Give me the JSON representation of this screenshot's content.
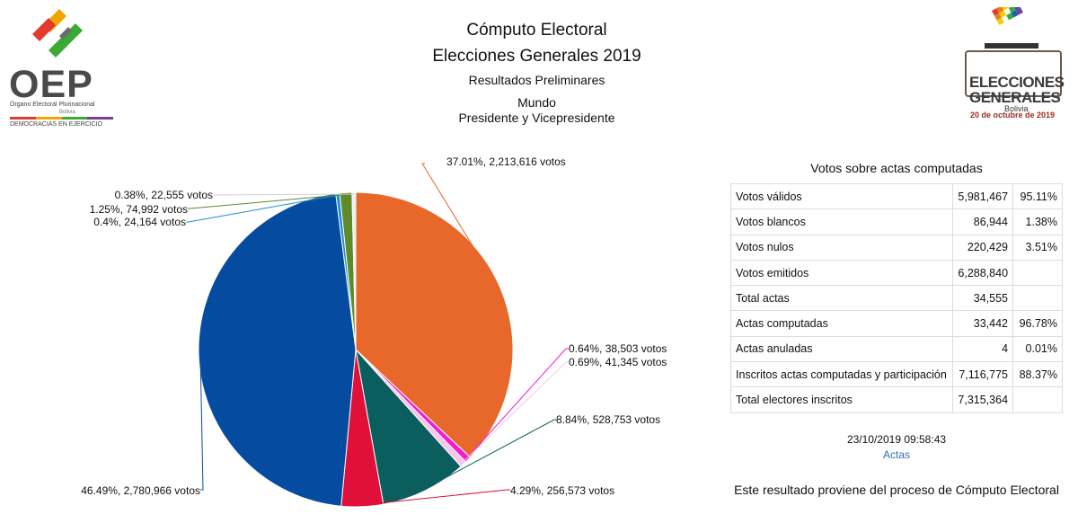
{
  "header": {
    "title": "Cómputo Electoral",
    "subtitle": "Elecciones Generales 2019",
    "results_type": "Resultados Preliminares",
    "region": "Mundo",
    "office": "Presidente y Vicepresidente"
  },
  "logos": {
    "oep": {
      "acronym": "OEP",
      "name": "Órgano Electoral Plurinacional",
      "country": "Bolivia",
      "motto": "DEMOCRACIAS EN EJERCICIO"
    },
    "elecciones": {
      "line1": "ELECCIONES",
      "line2": "GENERALES",
      "country": "Bolivia",
      "date": "20 de octubre de 2019"
    }
  },
  "chart_data": {
    "type": "pie",
    "slices": [
      {
        "percent": 37.01,
        "votes": 2213616,
        "label": "37.01%,  2,213,616 votos",
        "color": "#E8672A"
      },
      {
        "percent": 0.64,
        "votes": 38503,
        "label": "0.64%,  38,503 votos",
        "color": "#F21CD0"
      },
      {
        "percent": 0.69,
        "votes": 41345,
        "label": "0.69%,  41,345 votos",
        "color": "#F7C6EC"
      },
      {
        "percent": 8.84,
        "votes": 528753,
        "label": "8.84%,  528,753 votos",
        "color": "#0B5E5E"
      },
      {
        "percent": 4.29,
        "votes": 256573,
        "label": "4.29%,  256,573 votos",
        "color": "#E0103A"
      },
      {
        "percent": 46.49,
        "votes": 2780966,
        "label": "46.49%,  2,780,966 votos",
        "color": "#054CA0"
      },
      {
        "percent": 0.4,
        "votes": 24164,
        "label": "0.4%,  24,164 votos",
        "color": "#1A8FD6"
      },
      {
        "percent": 1.25,
        "votes": 74992,
        "label": "1.25%,  74,992 votos",
        "color": "#5F8A2A"
      },
      {
        "percent": 0.38,
        "votes": 22555,
        "label": "0.38%,  22,555 votos",
        "color": "#EFEFEF"
      }
    ]
  },
  "table": {
    "title": "Votos sobre actas computadas",
    "rows": [
      {
        "label": "Votos válidos",
        "value": "5,981,467",
        "percent": "95.11%"
      },
      {
        "label": "Votos blancos",
        "value": "86,944",
        "percent": "1.38%"
      },
      {
        "label": "Votos nulos",
        "value": "220,429",
        "percent": "3.51%"
      },
      {
        "label": "Votos emitidos",
        "value": "6,288,840",
        "percent": ""
      },
      {
        "label": "Total actas",
        "value": "34,555",
        "percent": ""
      },
      {
        "label": "Actas computadas",
        "value": "33,442",
        "percent": "96.78%"
      },
      {
        "label": "Actas anuladas",
        "value": "4",
        "percent": "0.01%"
      },
      {
        "label": "Inscritos actas computadas y participación",
        "value": "7,116,775",
        "percent": "88.37%"
      },
      {
        "label": "Total electores inscritos",
        "value": "7,315,364",
        "percent": ""
      }
    ]
  },
  "timestamp": "23/10/2019 09:58:43",
  "actas_link": "Actas",
  "footer_note": "Este resultado proviene del proceso de Cómputo Electoral"
}
